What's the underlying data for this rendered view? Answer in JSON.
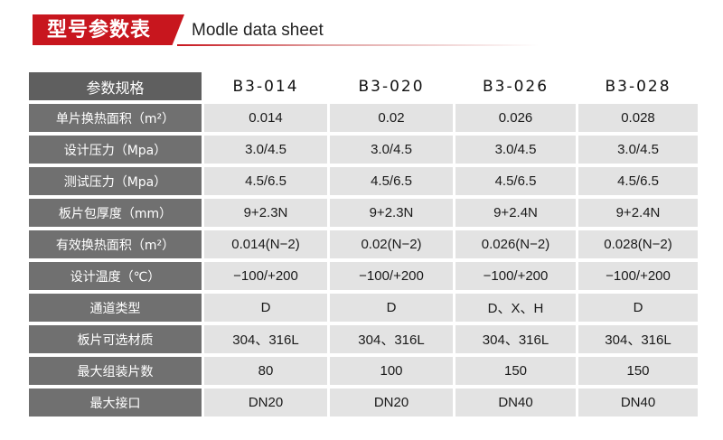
{
  "header": {
    "title_cn": "型号参数表",
    "title_en": "Modle data sheet"
  },
  "table": {
    "header_label": "参数规格",
    "models": [
      "B3-014",
      "B3-020",
      "B3-026",
      "B3-028"
    ],
    "rows": [
      {
        "label": "单片换热面积（m²）",
        "values": [
          "0.014",
          "0.02",
          "0.026",
          "0.028"
        ]
      },
      {
        "label": "设计压力（Mpa）",
        "values": [
          "3.0/4.5",
          "3.0/4.5",
          "3.0/4.5",
          "3.0/4.5"
        ]
      },
      {
        "label": "测试压力（Mpa）",
        "values": [
          "4.5/6.5",
          "4.5/6.5",
          "4.5/6.5",
          "4.5/6.5"
        ]
      },
      {
        "label": "板片包厚度（mm）",
        "values": [
          "9+2.3N",
          "9+2.3N",
          "9+2.4N",
          "9+2.4N"
        ]
      },
      {
        "label": "有效换热面积（m²）",
        "values": [
          "0.014(N−2)",
          "0.02(N−2)",
          "0.026(N−2)",
          "0.028(N−2)"
        ]
      },
      {
        "label": "设计温度（℃）",
        "values": [
          "−100/+200",
          "−100/+200",
          "−100/+200",
          "−100/+200"
        ]
      },
      {
        "label": "通道类型",
        "values": [
          "D",
          "D",
          "D、X、H",
          "D"
        ]
      },
      {
        "label": "板片可选材质",
        "values": [
          "304、316L",
          "304、316L",
          "304、316L",
          "304、316L"
        ]
      },
      {
        "label": "最大组装片数",
        "values": [
          "80",
          "100",
          "150",
          "150"
        ]
      },
      {
        "label": "最大接口",
        "values": [
          "DN20",
          "DN20",
          "DN40",
          "DN40"
        ]
      }
    ]
  },
  "colors": {
    "accent": "#c8161e",
    "label_bg": "#707070",
    "value_bg": "#e3e3e3"
  }
}
